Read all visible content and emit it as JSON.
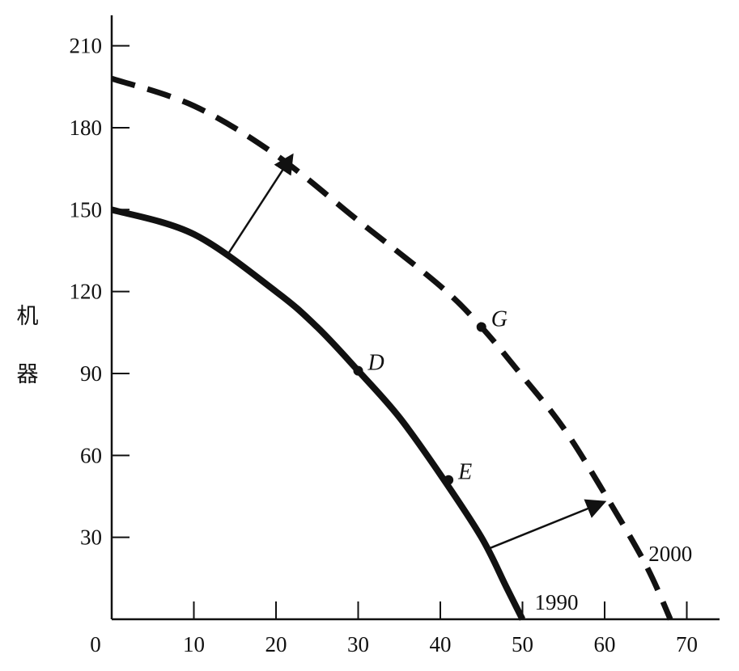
{
  "chart_data": {
    "type": "line",
    "title": "",
    "xlabel": "",
    "ylabel": "机器",
    "xlim": [
      0,
      73
    ],
    "ylim": [
      0,
      220
    ],
    "x_ticks": [
      0,
      10,
      20,
      30,
      40,
      50,
      60,
      70
    ],
    "y_ticks": [
      30,
      60,
      90,
      120,
      150,
      180,
      210
    ],
    "grid": false,
    "series": [
      {
        "name": "1990",
        "style": "solid",
        "points": [
          [
            0,
            150
          ],
          [
            10,
            141
          ],
          [
            20,
            120
          ],
          [
            25,
            107
          ],
          [
            30,
            91
          ],
          [
            35,
            74
          ],
          [
            40,
            53
          ],
          [
            45,
            30
          ],
          [
            48,
            12
          ],
          [
            50,
            0
          ]
        ]
      },
      {
        "name": "2000",
        "style": "dashed",
        "points": [
          [
            0,
            198
          ],
          [
            10,
            188
          ],
          [
            20,
            170
          ],
          [
            30,
            146
          ],
          [
            40,
            122
          ],
          [
            45,
            107
          ],
          [
            50,
            89
          ],
          [
            55,
            70
          ],
          [
            60,
            46
          ],
          [
            65,
            20
          ],
          [
            68,
            0
          ]
        ]
      }
    ],
    "labeled_points": [
      {
        "label": "D",
        "x": 30,
        "y": 91
      },
      {
        "label": "E",
        "x": 41,
        "y": 51
      },
      {
        "label": "G",
        "x": 45,
        "y": 107
      }
    ],
    "arrows": [
      {
        "from": [
          14,
          133
        ],
        "to": [
          22,
          170
        ]
      },
      {
        "from": [
          46,
          26
        ],
        "to": [
          60,
          43
        ]
      }
    ]
  }
}
